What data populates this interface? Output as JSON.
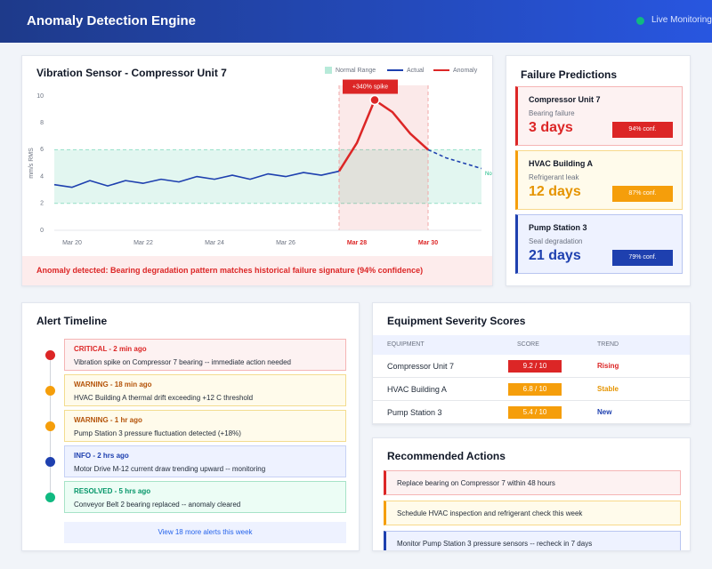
{
  "header": {
    "title": "Anomaly Detection Engine",
    "status": "Live Monitoring"
  },
  "chart_data": {
    "type": "line",
    "title": "Vibration Sensor - Compressor Unit 7",
    "y_label": "mm/s RMS",
    "xlim": [
      19.5,
      31.5
    ],
    "xticks": [
      {
        "value": 20,
        "label": "Mar 20"
      },
      {
        "value": 22,
        "label": "Mar 22"
      },
      {
        "value": 24,
        "label": "Mar 24"
      },
      {
        "value": 26,
        "label": "Mar 26"
      },
      {
        "value": 28,
        "label": "Mar 28"
      },
      {
        "value": 30,
        "label": "Mar 30"
      }
    ],
    "ylim": [
      0,
      10
    ],
    "yticks": [
      0,
      2,
      4,
      6,
      8,
      10
    ],
    "grid": false,
    "legend": "top-right",
    "normal_range": {
      "name": "Normal Range",
      "range": [
        2,
        6
      ],
      "color": "#10b981",
      "label": "Normal"
    },
    "highlight": [
      27.5,
      30
    ],
    "annotation": "+340% spike",
    "series": [
      {
        "name": "Actual",
        "color": "#1e40af",
        "x": [
          19.5,
          20,
          20.5,
          21,
          21.5,
          22,
          22.5,
          23,
          23.5,
          24,
          24.5,
          25,
          25.5,
          26,
          26.5,
          27,
          27.5
        ],
        "values": [
          3.4,
          3.2,
          3.7,
          3.3,
          3.7,
          3.5,
          3.8,
          3.6,
          4.0,
          3.8,
          4.1,
          3.8,
          4.2,
          4.0,
          4.3,
          4.1,
          4.4
        ]
      },
      {
        "name": "Anomaly",
        "color": "#dc2626",
        "x": [
          27.5,
          28,
          28.5,
          29,
          29.5,
          30
        ],
        "values": [
          4.4,
          6.5,
          9.7,
          8.8,
          7.2,
          6.0
        ]
      },
      {
        "color": "#1e40af",
        "dashed": true,
        "x": [
          30,
          30.5,
          31,
          31.5
        ],
        "values": [
          6.0,
          5.4,
          5.0,
          4.6
        ]
      }
    ],
    "footer": "Anomaly detected: Bearing degradation pattern matches historical failure signature (94% confidence)"
  },
  "predictions": {
    "title": "Failure Predictions",
    "items": [
      {
        "name": "Compressor Unit 7",
        "issue": "Bearing failure",
        "eta": "3 days",
        "confidence": "94% conf."
      },
      {
        "name": "HVAC Building A",
        "issue": "Refrigerant leak",
        "eta": "12 days",
        "confidence": "87% conf."
      },
      {
        "name": "Pump Station 3",
        "issue": "Seal degradation",
        "eta": "21 days",
        "confidence": "79% conf."
      }
    ]
  },
  "alerts": {
    "title": "Alert Timeline",
    "items": [
      {
        "level": "CRITICAL - 2 min ago",
        "message": "Vibration spike on Compressor 7 bearing -- immediate action needed"
      },
      {
        "level": "WARNING - 18 min ago",
        "message": "HVAC Building A thermal drift exceeding +12 C threshold"
      },
      {
        "level": "WARNING - 1 hr ago",
        "message": "Pump Station 3 pressure fluctuation detected (+18%)"
      },
      {
        "level": "INFO - 2 hrs ago",
        "message": "Motor Drive M-12 current draw trending upward -- monitoring"
      },
      {
        "level": "RESOLVED - 5 hrs ago",
        "message": "Conveyor Belt 2 bearing replaced -- anomaly cleared"
      }
    ],
    "more": "View 18 more alerts this week"
  },
  "severity": {
    "title": "Equipment Severity Scores",
    "columns": [
      "EQUIPMENT",
      "SCORE",
      "TREND"
    ],
    "rows": [
      [
        "Compressor Unit 7",
        "9.2 / 10",
        "Rising"
      ],
      [
        "HVAC Building A",
        "6.8 / 10",
        "Stable"
      ],
      [
        "Pump Station 3",
        "5.4 / 10",
        "New"
      ]
    ]
  },
  "actions": {
    "title": "Recommended Actions",
    "items": [
      "Replace bearing on Compressor 7 within 48 hours",
      "Schedule HVAC inspection and refrigerant check this week",
      "Monitor Pump Station 3 pressure sensors -- recheck in 7 days"
    ]
  }
}
